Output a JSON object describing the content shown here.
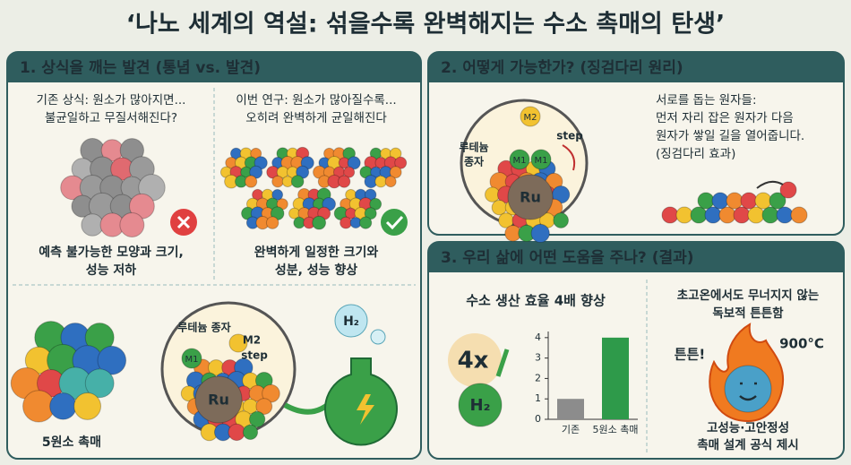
{
  "title": "‘나노 세계의 역설: 섞을수록 완벽해지는 수소 촉매의 탄생’",
  "panels": [
    {
      "heading": "1. 상식을 깨는 발견 (통념 vs. 발견)",
      "old": {
        "caption": [
          "기존 상식: 원소가 많아지면...",
          "불균일하고 무질서해진다?"
        ],
        "result": [
          "예측 불가능한 모양과 크기,",
          "성능 저하"
        ]
      },
      "new": {
        "caption": [
          "이번 연구: 원소가 많아질수록...",
          "오히려 완벽하게 균일해진다"
        ],
        "result": [
          "완벽하게 일정한 크기와",
          "성분, 성능 향상"
        ]
      },
      "figure": {
        "catalyst_label": "5원소 촉매",
        "seed_label": "루테늄 종자",
        "m2": "M2",
        "step": "step",
        "m1": "M1",
        "ru": "Ru",
        "h2": "H₂"
      }
    },
    {
      "heading": "2. 어떻게 가능한가? (징검다리 원리)",
      "seed_label": [
        "루테늄",
        "종자"
      ],
      "m2": "M2",
      "step": "step",
      "m1": [
        "M1",
        "M1"
      ],
      "ru": "Ru",
      "text": [
        "서로를 돕는 원자들:",
        "먼저 자리 잡은 원자가 다음",
        "원자가 쌓일 길을 열어줍니다.",
        "(징검다리 효과)"
      ]
    },
    {
      "heading": "3. 우리 삶에 어떤 도움을 주나? (결과)",
      "efficiency": {
        "title": "수소 생산 효율 4배 향상",
        "badge": "4x",
        "h2": "H₂"
      },
      "chart": {
        "type": "bar",
        "categories": [
          "기존",
          "5원소 촉매"
        ],
        "values": [
          1,
          4
        ],
        "colors": [
          "#8c8c8c",
          "#2e9a4a"
        ],
        "ylim": [
          0,
          4.3
        ],
        "yticks": [
          0,
          1,
          2,
          3,
          4
        ]
      },
      "durability": {
        "title": [
          "초고온에서도 무너지지 않는",
          "독보적 튼튼함"
        ],
        "shout": "튼튼!",
        "temperature": "900°C",
        "conclusion": [
          "고성능·고안정성",
          "촉매 설계 공식 제시"
        ]
      }
    }
  ]
}
